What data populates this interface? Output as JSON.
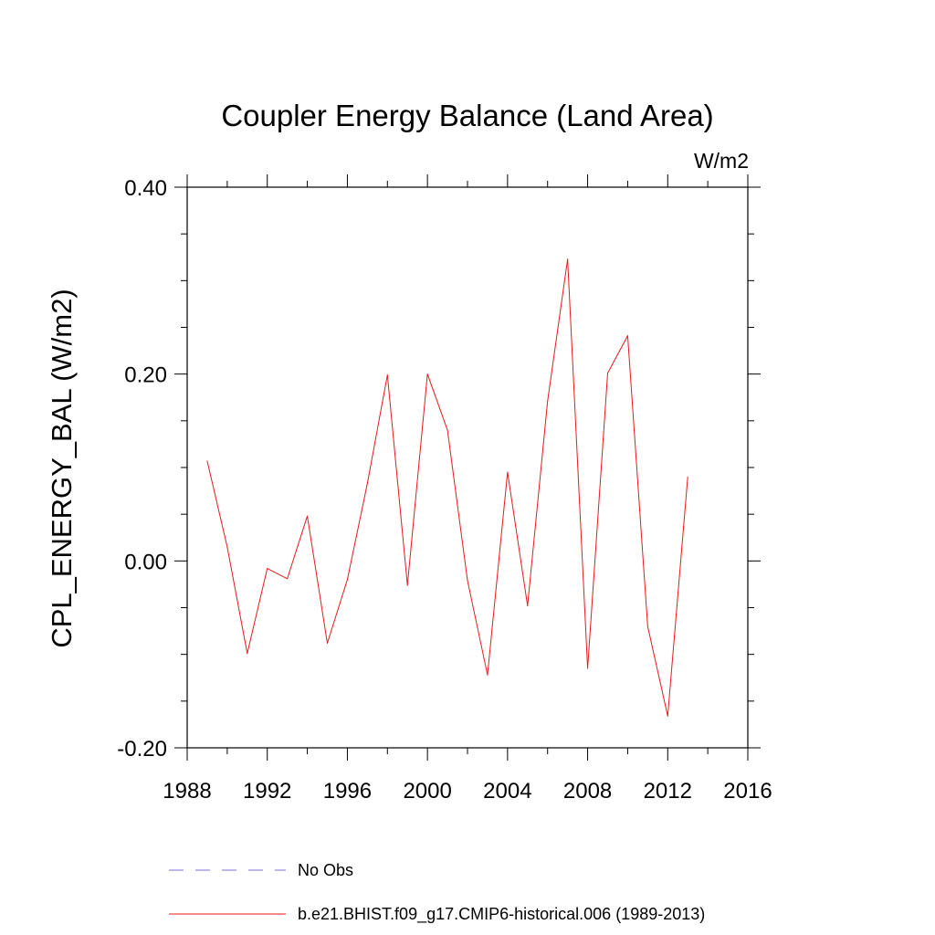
{
  "chart_data": {
    "type": "line",
    "title": "Coupler Energy Balance (Land Area)",
    "units_label": "W/m2",
    "xlabel": "",
    "ylabel": "CPL_ENERGY_BAL  (W/m2)",
    "xlim": [
      1988,
      2016
    ],
    "ylim": [
      -0.2,
      0.4
    ],
    "x_ticks": [
      1988,
      1992,
      1996,
      2000,
      2004,
      2008,
      2012,
      2016
    ],
    "x_tick_labels": [
      "1988",
      "1992",
      "1996",
      "2000",
      "2004",
      "2008",
      "2012",
      "2016"
    ],
    "y_ticks": [
      -0.2,
      0.0,
      0.2,
      0.4
    ],
    "y_tick_labels": [
      "-0.20",
      "0.00",
      "0.20",
      "0.40"
    ],
    "y_minor_ticks": [
      -0.15,
      -0.1,
      -0.05,
      0.05,
      0.1,
      0.15,
      0.25,
      0.3,
      0.35
    ],
    "x_minor_ticks": [
      1990,
      1994,
      1998,
      2002,
      2006,
      2010,
      2014
    ],
    "series": [
      {
        "name": "b.e21.BHIST.f09_g17.CMIP6-historical.006 (1989-2013)",
        "color": "#e8191e",
        "style": "solid",
        "x": [
          1989,
          1990,
          1991,
          1992,
          1993,
          1994,
          1995,
          1996,
          1997,
          1998,
          1999,
          2000,
          2001,
          2002,
          2003,
          2004,
          2005,
          2006,
          2007,
          2008,
          2009,
          2010,
          2011,
          2012,
          2013
        ],
        "values": [
          0.107,
          0.015,
          -0.099,
          -0.008,
          -0.019,
          0.048,
          -0.088,
          -0.02,
          0.083,
          0.199,
          -0.026,
          0.2,
          0.14,
          -0.021,
          -0.122,
          0.095,
          -0.048,
          0.171,
          0.323,
          -0.115,
          0.201,
          0.241,
          -0.07,
          -0.166,
          0.09
        ]
      }
    ],
    "legend": [
      {
        "label": "No Obs",
        "color": "#7b6fd0",
        "style": "dashed"
      },
      {
        "label": "b.e21.BHIST.f09_g17.CMIP6-historical.006 (1989-2013)",
        "color": "#e8191e",
        "style": "solid"
      }
    ]
  }
}
